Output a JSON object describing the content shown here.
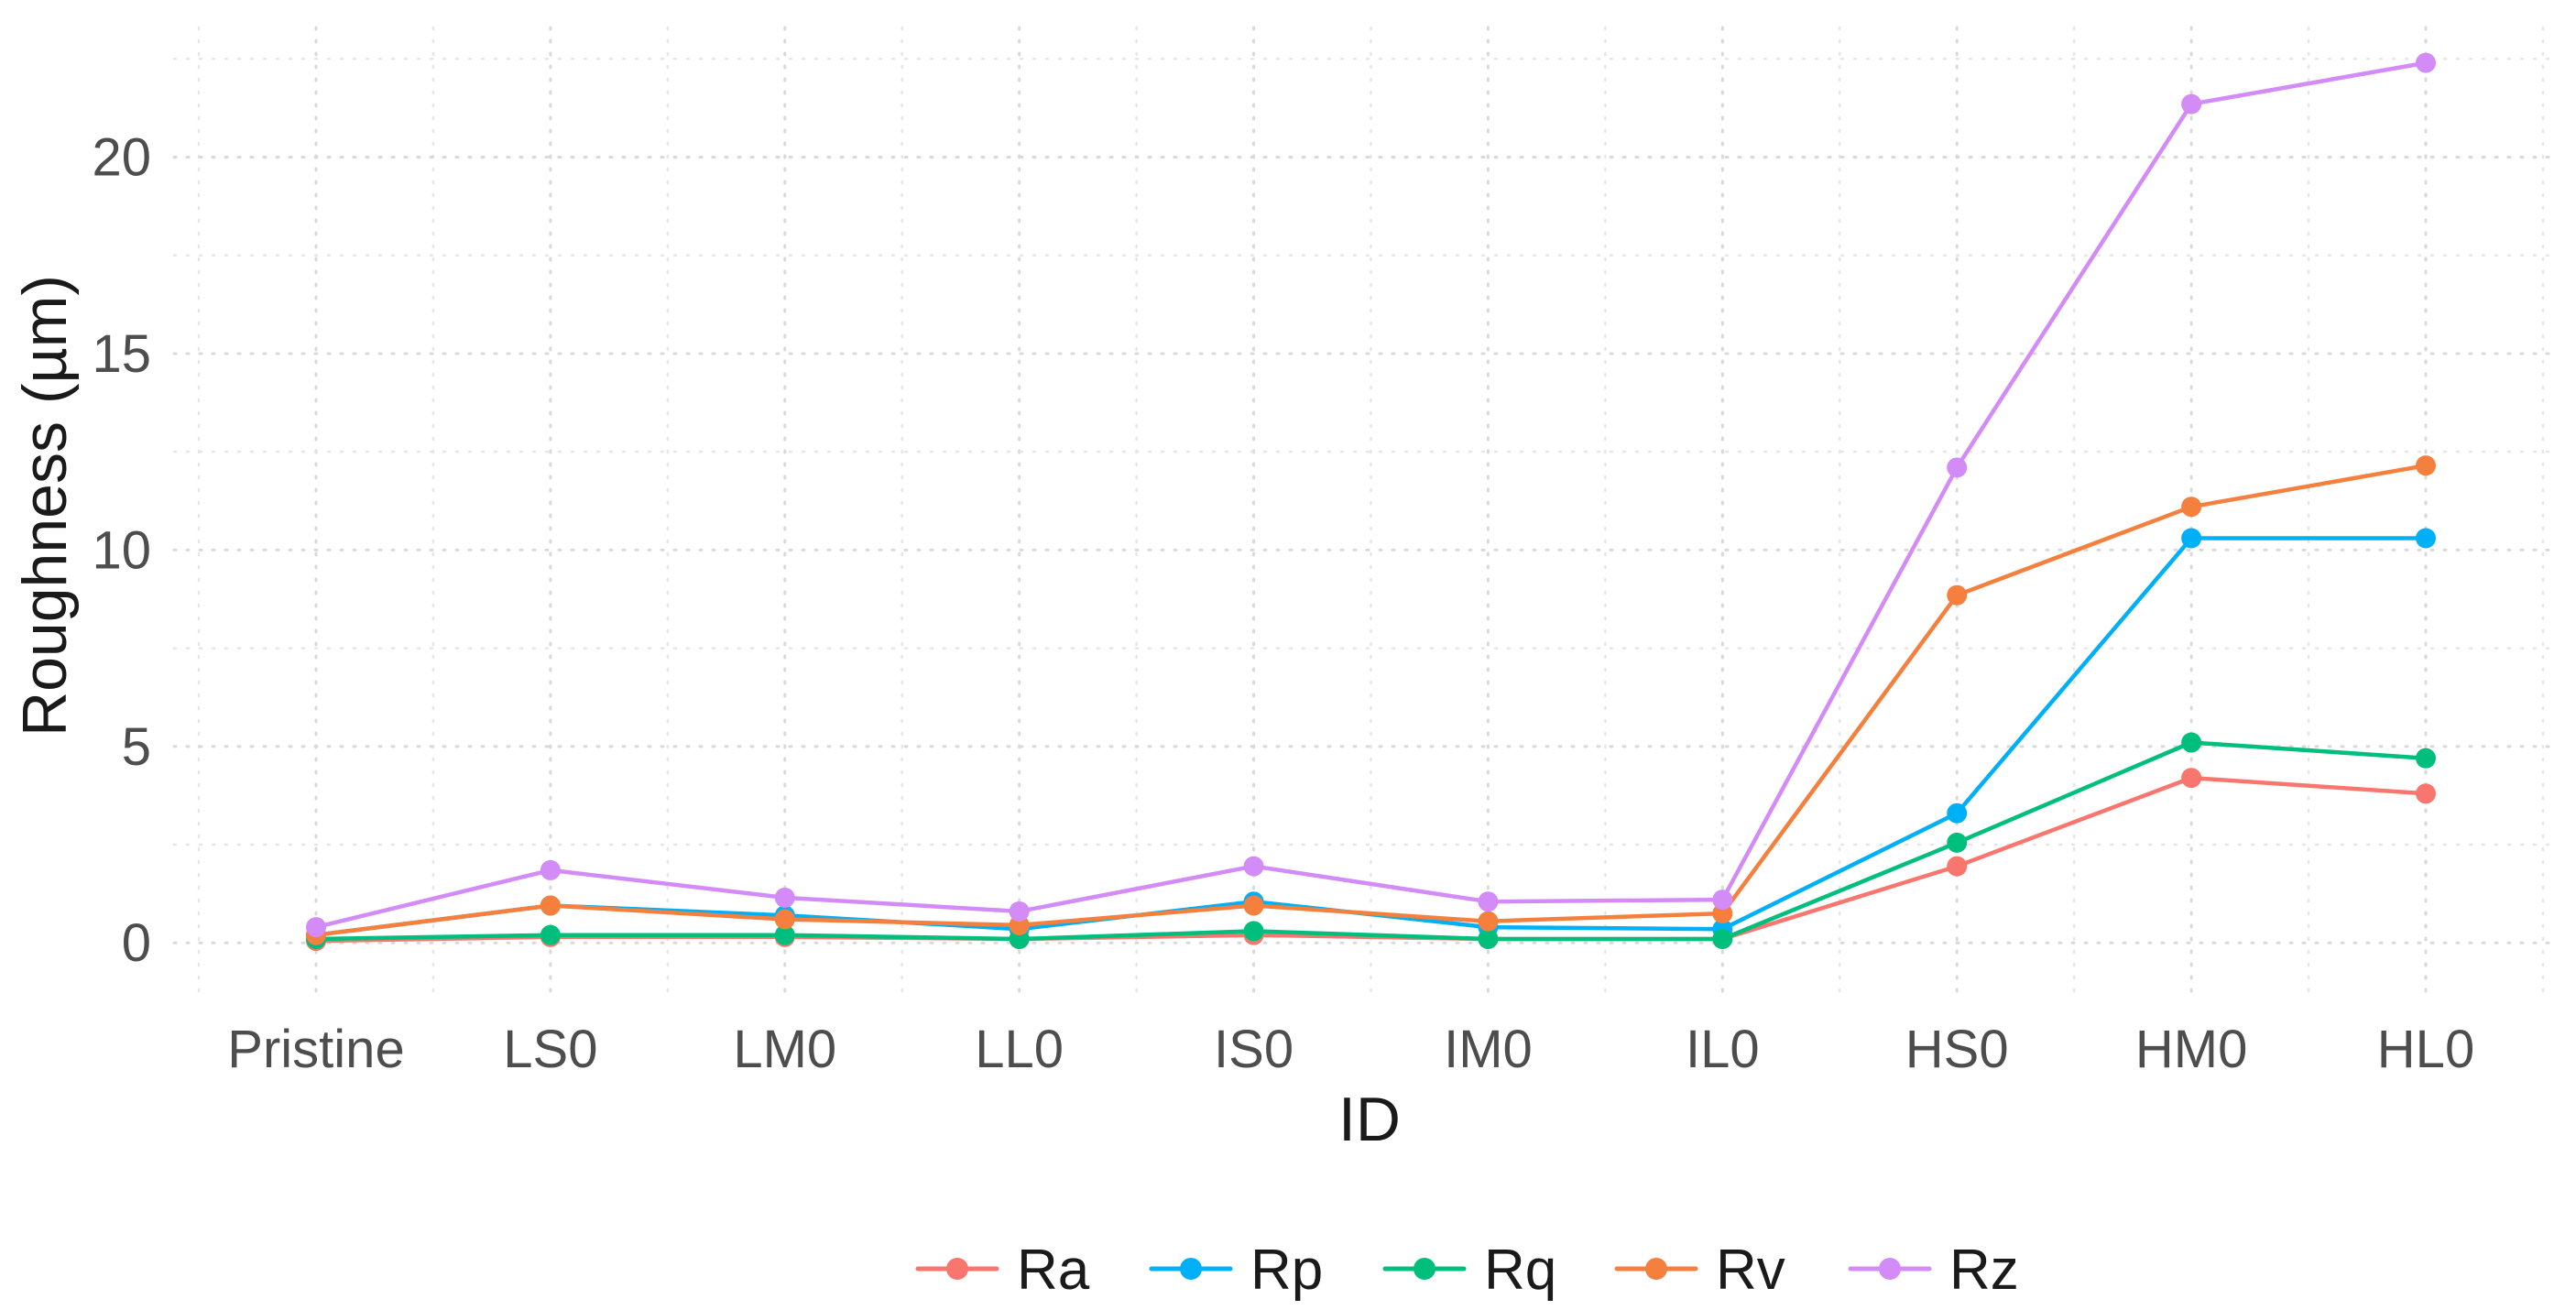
{
  "chart_data": {
    "type": "line",
    "xlabel": "ID",
    "ylabel": "Roughness (µm)",
    "categories": [
      "Pristine",
      "LS0",
      "LM0",
      "LL0",
      "IS0",
      "IM0",
      "IL0",
      "HS0",
      "HM0",
      "HL0"
    ],
    "ylim": [
      -1.3,
      23.3
    ],
    "yticks": [
      0,
      5,
      10,
      15,
      20
    ],
    "grid": true,
    "legend_position": "bottom",
    "series": [
      {
        "name": "Ra",
        "color": "#F8766D",
        "values": [
          0.05,
          0.15,
          0.15,
          0.1,
          0.2,
          0.1,
          0.1,
          1.95,
          4.2,
          3.8
        ]
      },
      {
        "name": "Rp",
        "color": "#00B0F6",
        "values": [
          0.2,
          0.95,
          0.7,
          0.35,
          1.05,
          0.4,
          0.35,
          3.3,
          10.3,
          10.3
        ]
      },
      {
        "name": "Rq",
        "color": "#00BF7D",
        "values": [
          0.1,
          0.2,
          0.2,
          0.1,
          0.3,
          0.1,
          0.1,
          2.55,
          5.1,
          4.7
        ]
      },
      {
        "name": "Rv",
        "color": "#F5803E",
        "values": [
          0.2,
          0.95,
          0.6,
          0.45,
          0.95,
          0.55,
          0.75,
          8.85,
          11.1,
          12.15
        ]
      },
      {
        "name": "Rz",
        "color": "#D38BF7",
        "values": [
          0.4,
          1.85,
          1.15,
          0.8,
          1.95,
          1.05,
          1.1,
          12.1,
          21.35,
          22.4
        ]
      }
    ]
  }
}
